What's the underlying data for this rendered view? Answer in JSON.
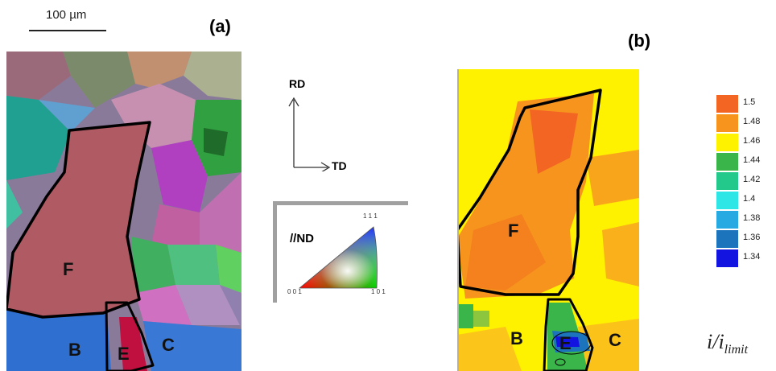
{
  "scale_bar": {
    "label": "100 µm"
  },
  "panel_a": {
    "label": "(a)",
    "grains": {
      "F": "F",
      "B": "B",
      "E": "E",
      "C": "C"
    }
  },
  "panel_b": {
    "label": "(b)",
    "grains": {
      "F": "F",
      "B": "B",
      "E": "E",
      "C": "C"
    }
  },
  "axes": {
    "rd": "RD",
    "td": "TD"
  },
  "ipf_key": {
    "direction": "//ND",
    "corner_001": "0 0 1",
    "corner_101": "1 0 1",
    "corner_111": "1 1 1"
  },
  "colorbar": {
    "quantity_prefix": "i/i",
    "quantity_subscript": "limit",
    "levels": [
      {
        "value": "1.5",
        "color": "#f26522"
      },
      {
        "value": "1.48",
        "color": "#f7941d"
      },
      {
        "value": "1.46",
        "color": "#fff200"
      },
      {
        "value": "1.44",
        "color": "#39b54a"
      },
      {
        "value": "1.42",
        "color": "#22c98a"
      },
      {
        "value": "1.4",
        "color": "#2ee6e6"
      },
      {
        "value": "1.38",
        "color": "#27aae1"
      },
      {
        "value": "1.36",
        "color": "#1c75bc"
      },
      {
        "value": "1.34",
        "color": "#1414e0"
      }
    ]
  }
}
